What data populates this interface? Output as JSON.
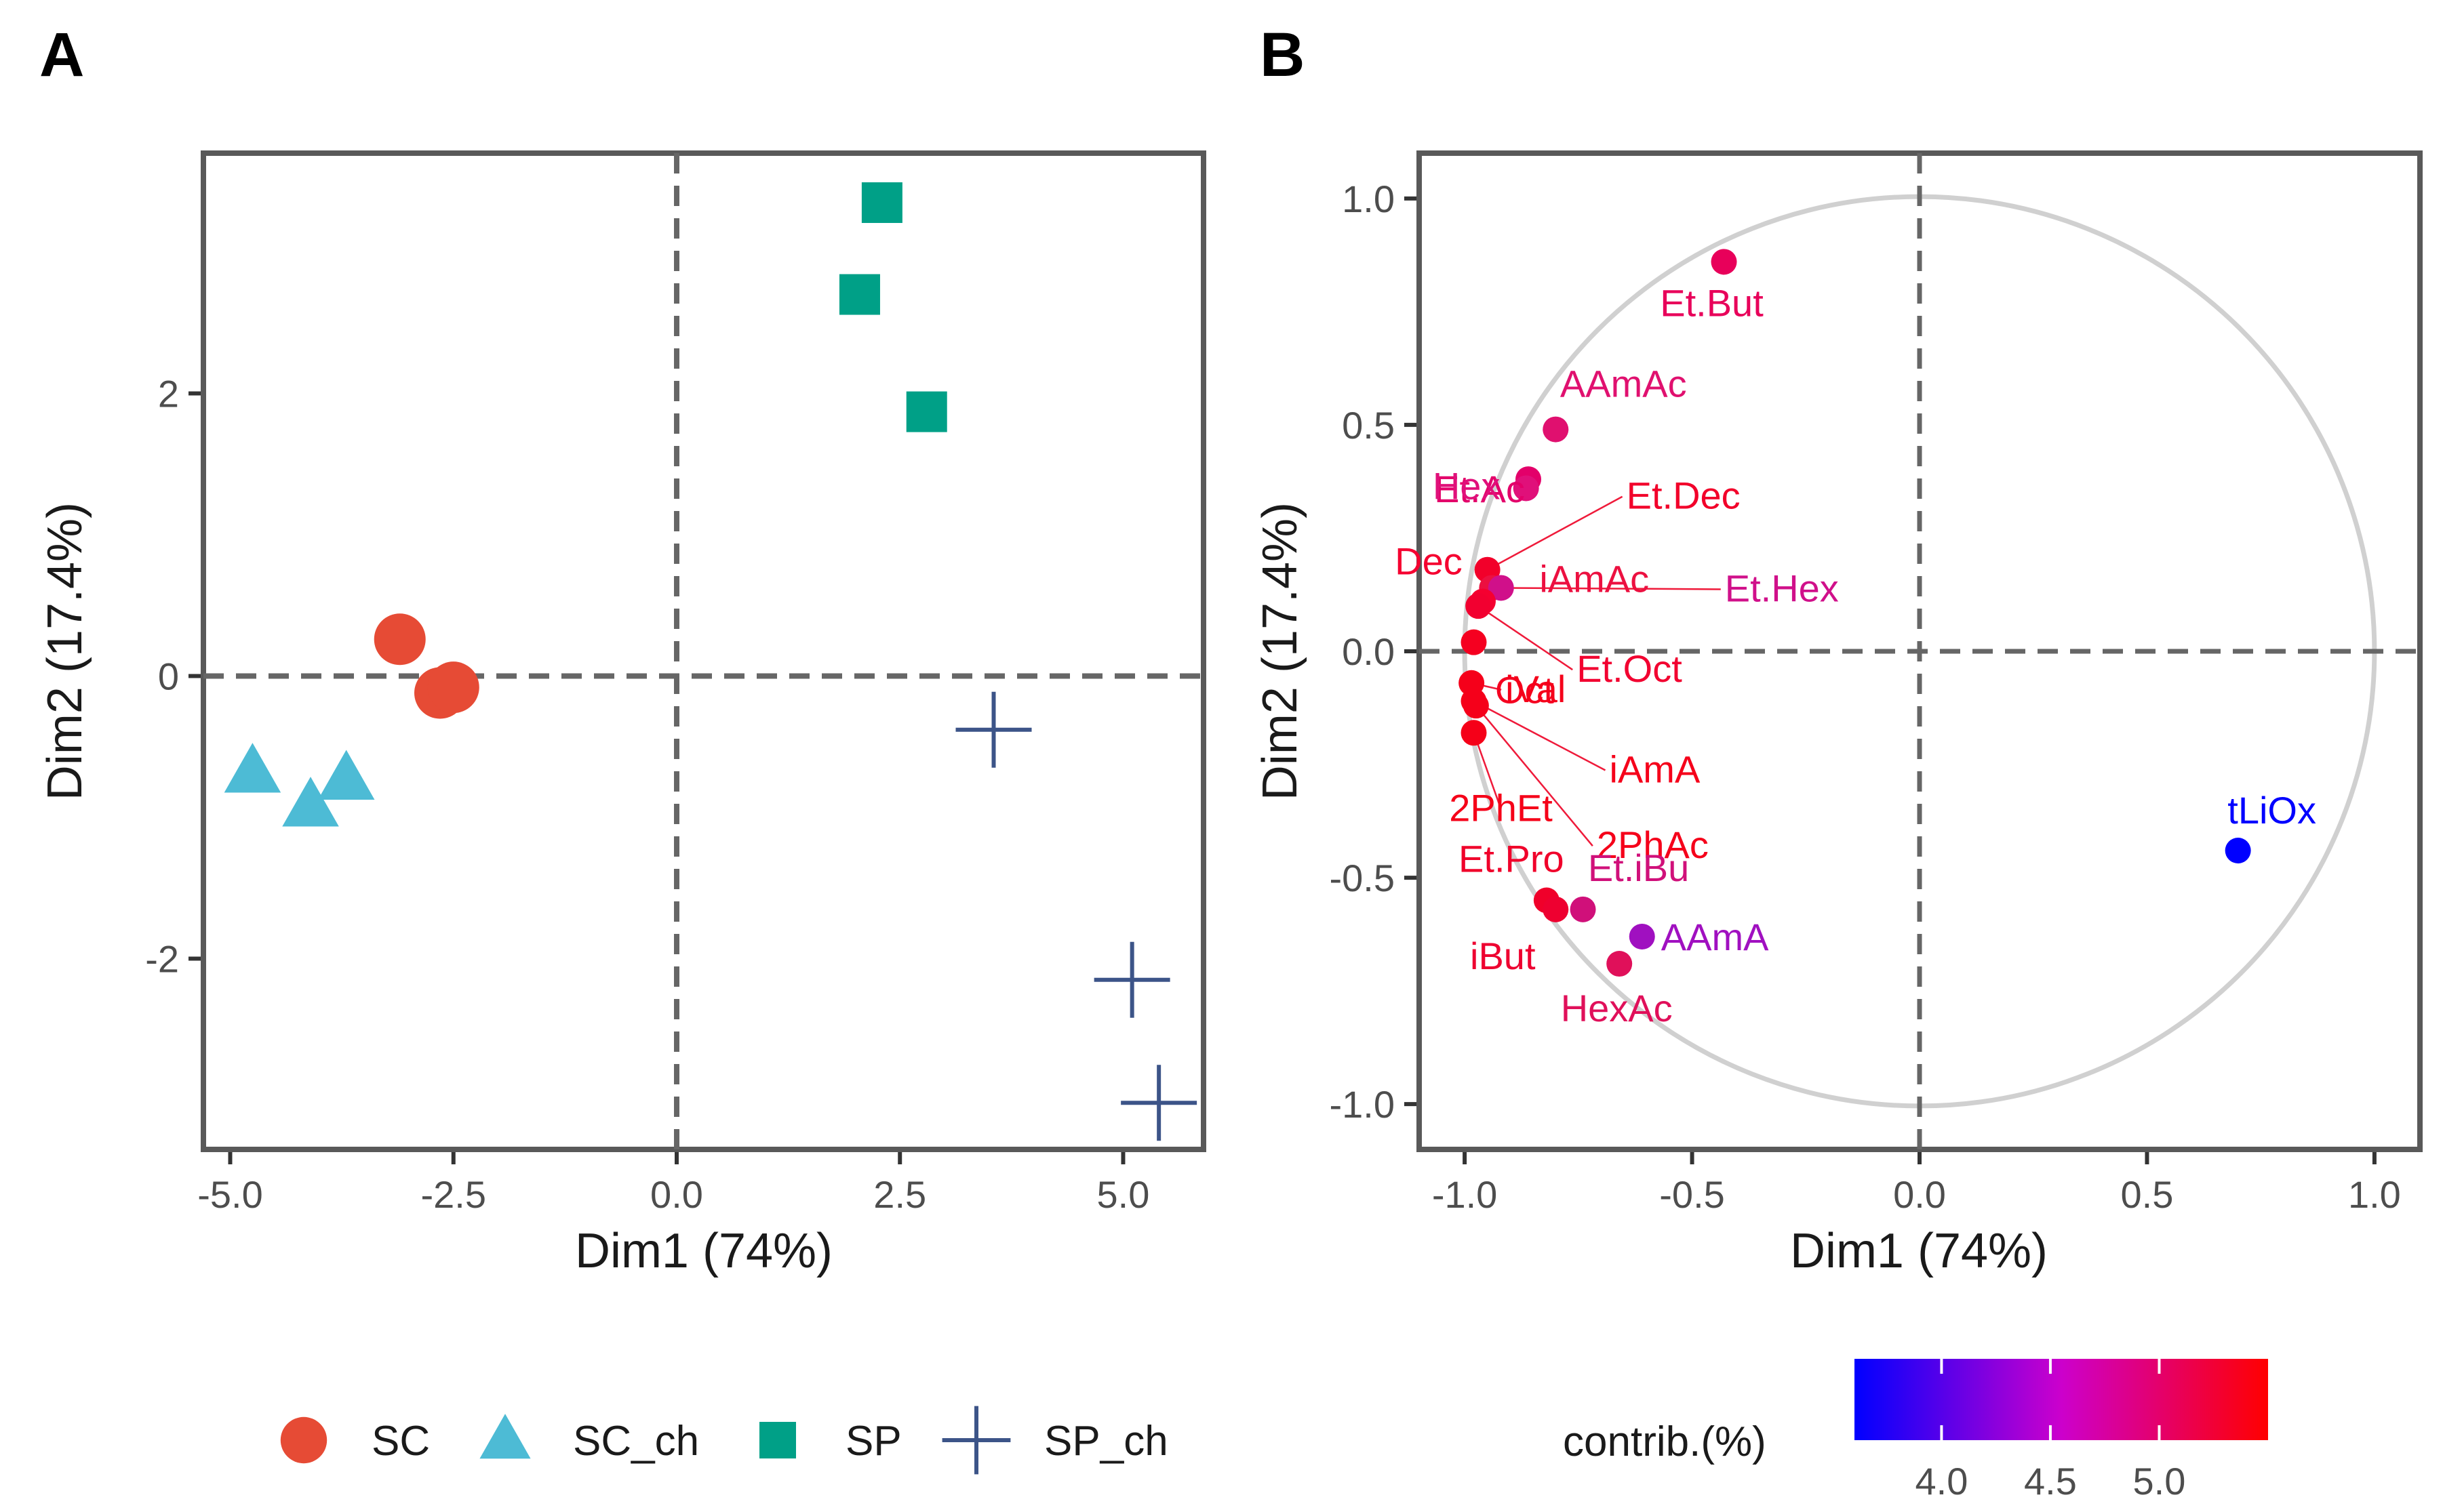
{
  "figure": {
    "panel_a_letter": "A",
    "panel_b_letter": "B"
  },
  "chart_data": [
    {
      "type": "scatter",
      "panel": "A",
      "title": "",
      "xlabel": "Dim1 (74%)",
      "ylabel": "Dim2 (17.4%)",
      "xlim": [
        -5.3,
        5.9
      ],
      "ylim": [
        -3.35,
        3.7
      ],
      "xticks": [
        -5.0,
        -2.5,
        0.0,
        2.5,
        5.0
      ],
      "xtick_labels": [
        "-5.0",
        "-2.5",
        "0.0",
        "2.5",
        "5.0"
      ],
      "yticks": [
        -2,
        0,
        2
      ],
      "ytick_labels": [
        "-2",
        "0",
        "2"
      ],
      "reference_lines": {
        "x": 0,
        "y": 0
      },
      "legend_placement": "bottom",
      "series": [
        {
          "name": "SC",
          "marker": "circle",
          "color": "#e64b35",
          "points": [
            [
              -3.1,
              0.26
            ],
            [
              -2.65,
              -0.12
            ],
            [
              -2.5,
              -0.08
            ]
          ]
        },
        {
          "name": "SC_ch",
          "marker": "triangle",
          "color": "#4dbbd5",
          "points": [
            [
              -4.75,
              -0.68
            ],
            [
              -4.1,
              -0.92
            ],
            [
              -3.7,
              -0.73
            ]
          ]
        },
        {
          "name": "SP",
          "marker": "square",
          "color": "#00a087",
          "points": [
            [
              2.3,
              3.35
            ],
            [
              2.05,
              2.7
            ],
            [
              2.8,
              1.87
            ]
          ]
        },
        {
          "name": "SP_ch",
          "marker": "cross",
          "color": "#3c5488",
          "points": [
            [
              3.55,
              -0.38
            ],
            [
              5.1,
              -2.15
            ],
            [
              5.4,
              -3.02
            ]
          ]
        }
      ]
    },
    {
      "type": "scatter",
      "panel": "B",
      "title": "",
      "xlabel": "Dim1 (74%)",
      "ylabel": "Dim2 (17.4%)",
      "xlim": [
        -1.1,
        1.1
      ],
      "ylim": [
        -1.1,
        1.1
      ],
      "xticks": [
        -1.0,
        -0.5,
        0.0,
        0.5,
        1.0
      ],
      "xtick_labels": [
        "-1.0",
        "-0.5",
        "0.0",
        "0.5",
        "1.0"
      ],
      "yticks": [
        -1.0,
        -0.5,
        0.0,
        0.5,
        1.0
      ],
      "ytick_labels": [
        "-1.0",
        "-0.5",
        "0.0",
        "0.5",
        "1.0"
      ],
      "reference_lines": {
        "x": 0,
        "y": 0
      },
      "unit_circle": true,
      "colorbar": {
        "title": "contrib.(%)",
        "range": [
          3.6,
          5.5
        ],
        "ticks": [
          4.0,
          4.5,
          5.0
        ],
        "tick_labels": [
          "4.0",
          "4.5",
          "5.0"
        ],
        "colors": [
          "#0000ff",
          "#cc00cc",
          "#ff0000"
        ]
      },
      "variables": [
        {
          "name": "Et.But",
          "x": -0.43,
          "y": 0.86,
          "color": "#e8005a"
        },
        {
          "name": "AAmAc",
          "x": -0.8,
          "y": 0.49,
          "color": "#e0106f"
        },
        {
          "name": "Et.Ac",
          "x": -0.86,
          "y": 0.38,
          "color": "#e3006a"
        },
        {
          "name": "Hex",
          "x": -0.865,
          "y": 0.36,
          "color": "#e0107a"
        },
        {
          "name": "Et.Dec",
          "x": -0.95,
          "y": 0.18,
          "color": "#f2002a"
        },
        {
          "name": "iAmAc",
          "x": -0.94,
          "y": 0.14,
          "color": "#ec1040"
        },
        {
          "name": "Et.Hex",
          "x": -0.92,
          "y": 0.14,
          "color": "#d0108a"
        },
        {
          "name": "Dec",
          "x": -0.96,
          "y": 0.11,
          "color": "#f50030"
        },
        {
          "name": "Et.Oct",
          "x": -0.97,
          "y": 0.1,
          "color": "#f20030"
        },
        {
          "name": "Oct",
          "x": -0.98,
          "y": 0.02,
          "color": "#f50020"
        },
        {
          "name": "iVal",
          "x": -0.985,
          "y": -0.07,
          "color": "#f5001a"
        },
        {
          "name": "iAmA",
          "x": -0.98,
          "y": -0.11,
          "color": "#f5001a"
        },
        {
          "name": "2PhEt",
          "x": -0.98,
          "y": -0.18,
          "color": "#f50018"
        },
        {
          "name": "2PhAc",
          "x": -0.975,
          "y": -0.12,
          "color": "#f5001a"
        },
        {
          "name": "Et.Pro",
          "x": -0.82,
          "y": -0.55,
          "color": "#f0002a"
        },
        {
          "name": "iBut",
          "x": -0.8,
          "y": -0.57,
          "color": "#ee0030"
        },
        {
          "name": "Et.iBu",
          "x": -0.74,
          "y": -0.57,
          "color": "#d0107a"
        },
        {
          "name": "AAmA",
          "x": -0.61,
          "y": -0.63,
          "color": "#a010c0"
        },
        {
          "name": "HexAc",
          "x": -0.66,
          "y": -0.69,
          "color": "#e0105a"
        },
        {
          "name": "tLiOx",
          "x": 0.7,
          "y": -0.44,
          "color": "#0000ff"
        }
      ]
    }
  ]
}
